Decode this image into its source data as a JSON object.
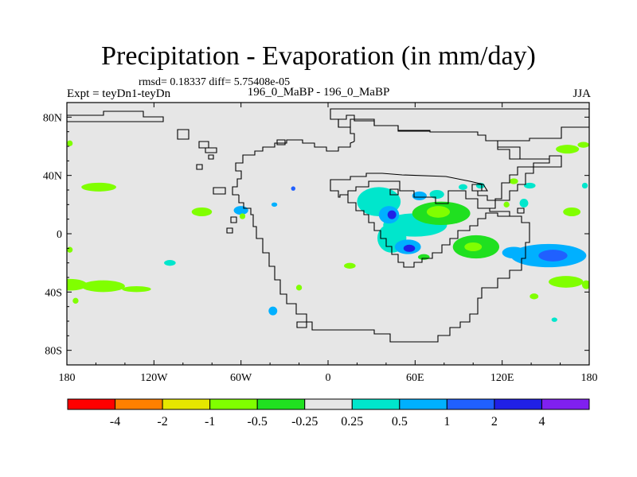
{
  "chart_data": {
    "type": "heatmap",
    "title": "Precipitation - Evaporation (in mm/day)",
    "stats_text": "rmsd= 0.18337 diff= 5.75408e-05",
    "left_string": "Expt = teyDn1-teyDn",
    "center_string": "196_0_MaBP - 196_0_MaBP",
    "right_string": "JJA",
    "xlim": [
      -180,
      180
    ],
    "ylim": [
      -90,
      90
    ],
    "x_ticks": [
      {
        "value": -180,
        "label": "180"
      },
      {
        "value": -120,
        "label": "120W"
      },
      {
        "value": -60,
        "label": "60W"
      },
      {
        "value": 0,
        "label": "0"
      },
      {
        "value": 60,
        "label": "60E"
      },
      {
        "value": 120,
        "label": "120E"
      },
      {
        "value": 180,
        "label": "180"
      }
    ],
    "y_ticks": [
      {
        "value": 80,
        "label": "80N"
      },
      {
        "value": 40,
        "label": "40N"
      },
      {
        "value": 0,
        "label": "0"
      },
      {
        "value": -40,
        "label": "40S"
      },
      {
        "value": -80,
        "label": "80S"
      }
    ],
    "colorbar": {
      "colors": [
        "#ff0000",
        "#ff8000",
        "#e6e600",
        "#80ff00",
        "#20e020",
        "#e6e6e6",
        "#00e6cc",
        "#00b0ff",
        "#2060ff",
        "#2020e6",
        "#8020f0"
      ],
      "labels": [
        "-4",
        "-2",
        "-1",
        "-0.5",
        "-0.25",
        "0.25",
        "0.5",
        "1",
        "2",
        "4"
      ]
    },
    "anomalies": [
      {
        "lon": -158,
        "lat": 32,
        "rlon": 12,
        "rlat": 3,
        "level": "-0.5"
      },
      {
        "lon": -178,
        "lat": -35,
        "rlon": 12,
        "rlat": 4,
        "level": "-0.5"
      },
      {
        "lon": -155,
        "lat": -36,
        "rlon": 15,
        "rlat": 4,
        "level": "-0.5"
      },
      {
        "lon": -132,
        "lat": -38,
        "rlon": 10,
        "rlat": 2,
        "level": "-0.5"
      },
      {
        "lon": -174,
        "lat": -46,
        "rlon": 2,
        "rlat": 2,
        "level": "-0.5"
      },
      {
        "lon": -178,
        "lat": 62,
        "rlon": 2,
        "rlat": 2,
        "level": "-0.5"
      },
      {
        "lon": -178,
        "lat": -11,
        "rlon": 2,
        "rlat": 2,
        "level": "-0.5"
      },
      {
        "lon": -87,
        "lat": 15,
        "rlon": 7,
        "rlat": 3,
        "level": "-0.5"
      },
      {
        "lon": -109,
        "lat": -20,
        "rlon": 4,
        "rlat": 2,
        "level": "0.25"
      },
      {
        "lon": -60,
        "lat": 16,
        "rlon": 5,
        "rlat": 3,
        "level": "0.5"
      },
      {
        "lon": -59,
        "lat": 12,
        "rlon": 2,
        "rlat": 2,
        "level": "-0.5"
      },
      {
        "lon": -37,
        "lat": 20,
        "rlon": 2,
        "rlat": 1.5,
        "level": "0.5"
      },
      {
        "lon": -24,
        "lat": 31,
        "rlon": 1.5,
        "rlat": 1.5,
        "level": "1"
      },
      {
        "lon": -38,
        "lat": -53,
        "rlon": 3,
        "rlat": 3,
        "level": "0.5"
      },
      {
        "lon": -20,
        "lat": -37,
        "rlon": 2,
        "rlat": 2,
        "level": "-0.5"
      },
      {
        "lon": 35,
        "lat": 22,
        "rlon": 15,
        "rlat": 10,
        "level": "0.25"
      },
      {
        "lon": 44,
        "lat": -3,
        "rlon": 10,
        "rlat": 10,
        "level": "0.25"
      },
      {
        "lon": 60,
        "lat": 6,
        "rlon": 22,
        "rlat": 8,
        "level": "0.25"
      },
      {
        "lon": 42,
        "lat": 13,
        "rlon": 7,
        "rlat": 6,
        "level": "0.5"
      },
      {
        "lon": 44,
        "lat": 13,
        "rlon": 3,
        "rlat": 3,
        "level": "2"
      },
      {
        "lon": 55,
        "lat": -9,
        "rlon": 9,
        "rlat": 5,
        "level": "0.5"
      },
      {
        "lon": 56,
        "lat": -10,
        "rlon": 4,
        "rlat": 2.5,
        "level": "2"
      },
      {
        "lon": 63,
        "lat": 26,
        "rlon": 5,
        "rlat": 3,
        "level": "0.5"
      },
      {
        "lon": 75,
        "lat": 27,
        "rlon": 5,
        "rlat": 3,
        "level": "0.25"
      },
      {
        "lon": 93,
        "lat": 32,
        "rlon": 3,
        "rlat": 2,
        "level": "0.25"
      },
      {
        "lon": 78,
        "lat": 14,
        "rlon": 20,
        "rlat": 8,
        "level": "-0.25"
      },
      {
        "lon": 76,
        "lat": 15,
        "rlon": 8,
        "rlat": 4,
        "level": "-0.5"
      },
      {
        "lon": 102,
        "lat": -9,
        "rlon": 16,
        "rlat": 8,
        "level": "-0.25"
      },
      {
        "lon": 100,
        "lat": -9,
        "rlon": 6,
        "rlat": 3,
        "level": "-0.5"
      },
      {
        "lon": 66,
        "lat": -16,
        "rlon": 4,
        "rlat": 2,
        "level": "-0.25"
      },
      {
        "lon": 15,
        "lat": -22,
        "rlon": 4,
        "rlat": 2,
        "level": "-0.5"
      },
      {
        "lon": 152,
        "lat": -15,
        "rlon": 26,
        "rlat": 8,
        "level": "0.5"
      },
      {
        "lon": 155,
        "lat": -15,
        "rlon": 10,
        "rlat": 4,
        "level": "1"
      },
      {
        "lon": 128,
        "lat": -13,
        "rlon": 8,
        "rlat": 4,
        "level": "0.5"
      },
      {
        "lon": 135,
        "lat": 21,
        "rlon": 3,
        "rlat": 3,
        "level": "0.25"
      },
      {
        "lon": 123,
        "lat": 20,
        "rlon": 2,
        "rlat": 2,
        "level": "-0.5"
      },
      {
        "lon": 128,
        "lat": 36,
        "rlon": 3,
        "rlat": 2,
        "level": "-0.5"
      },
      {
        "lon": 139,
        "lat": 33,
        "rlon": 4,
        "rlat": 2,
        "level": "0.25"
      },
      {
        "lon": 168,
        "lat": 15,
        "rlon": 6,
        "rlat": 3,
        "level": "-0.5"
      },
      {
        "lon": 165,
        "lat": 58,
        "rlon": 8,
        "rlat": 3,
        "level": "-0.5"
      },
      {
        "lon": 176,
        "lat": 61,
        "rlon": 4,
        "rlat": 2,
        "level": "-0.5"
      },
      {
        "lon": 164,
        "lat": -33,
        "rlon": 12,
        "rlat": 4,
        "level": "-0.5"
      },
      {
        "lon": 178,
        "lat": -35,
        "rlon": 3,
        "rlat": 3,
        "level": "-0.5"
      },
      {
        "lon": 142,
        "lat": -43,
        "rlon": 3,
        "rlat": 2,
        "level": "-0.5"
      },
      {
        "lon": 156,
        "lat": -59,
        "rlon": 2,
        "rlat": 1.5,
        "level": "0.25"
      },
      {
        "lon": 177,
        "lat": 33,
        "rlon": 2,
        "rlat": 2,
        "level": "0.25"
      },
      {
        "lon": 105,
        "lat": 33,
        "rlon": 3,
        "rlat": 2,
        "level": "0.25"
      }
    ]
  }
}
